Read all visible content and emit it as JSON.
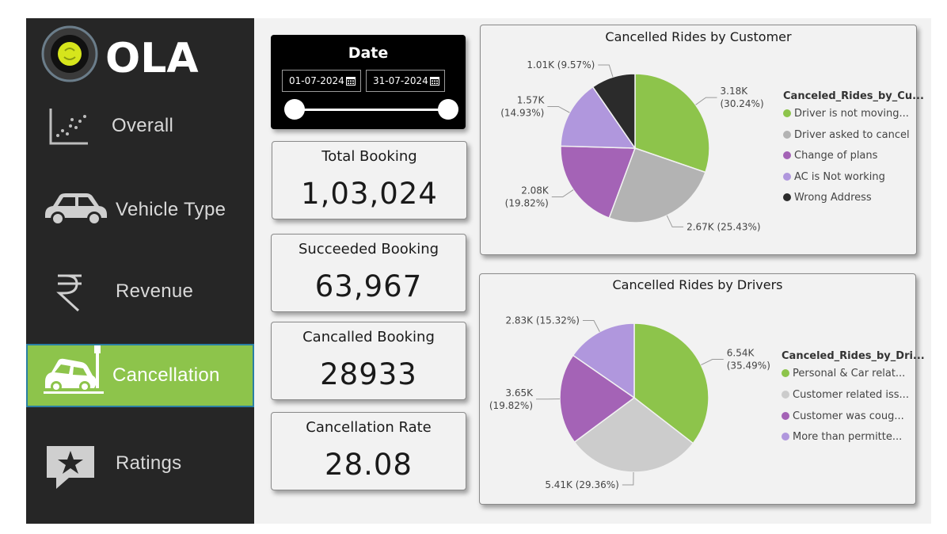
{
  "brand": {
    "name": "OLA"
  },
  "sidebar": {
    "items": [
      {
        "label": "Overall",
        "icon": "scatter-chart-icon"
      },
      {
        "label": "Vehicle Type",
        "icon": "car-icon"
      },
      {
        "label": "Revenue",
        "icon": "rupee-icon"
      },
      {
        "label": "Cancellation",
        "icon": "crashed-car-icon",
        "active": true
      },
      {
        "label": "Ratings",
        "icon": "star-comment-icon"
      }
    ]
  },
  "date_filter": {
    "title": "Date",
    "start": "01-07-2024",
    "end": "31-07-2024"
  },
  "kpis": [
    {
      "title": "Total Booking",
      "value": "1,03,024"
    },
    {
      "title": "Succeeded Booking",
      "value": "63,967"
    },
    {
      "title": "Cancalled Booking",
      "value": "28933"
    },
    {
      "title": "Cancellation Rate",
      "value": "28.08"
    }
  ],
  "colors": {
    "green": "#8dc44b",
    "gray": "#b3b3b3",
    "purple": "#a463b6",
    "lavender": "#b097dd",
    "black": "#2b2b2b",
    "light_gray": "#cccccc"
  },
  "chart_data": [
    {
      "type": "pie",
      "title": "Cancelled Rides by Customer",
      "legend_title": "Canceled_Rides_by_Cu...",
      "slices": [
        {
          "name": "Driver is not moving...",
          "value": 3.18,
          "label": "3.18K (30.24%)",
          "color": "#8dc44b"
        },
        {
          "name": "Driver asked to cancel",
          "value": 2.67,
          "label": "2.67K (25.43%)",
          "color": "#b3b3b3"
        },
        {
          "name": "Change of plans",
          "value": 2.08,
          "label": "2.08K (19.82%)",
          "color": "#a463b6"
        },
        {
          "name": "AC is Not working",
          "value": 1.57,
          "label": "1.57K (14.93%)",
          "color": "#b097dd"
        },
        {
          "name": "Wrong Address",
          "value": 1.01,
          "label": "1.01K (9.57%)",
          "color": "#2b2b2b"
        }
      ]
    },
    {
      "type": "pie",
      "title": "Cancelled Rides by Drivers",
      "legend_title": "Canceled_Rides_by_Dri...",
      "slices": [
        {
          "name": "Personal & Car relat...",
          "value": 6.54,
          "label": "6.54K (35.49%)",
          "color": "#8dc44b"
        },
        {
          "name": "Customer related iss...",
          "value": 5.41,
          "label": "5.41K (29.36%)",
          "color": "#cccccc"
        },
        {
          "name": "Customer was coug...",
          "value": 3.65,
          "label": "3.65K (19.82%)",
          "color": "#a463b6"
        },
        {
          "name": "More than permitte...",
          "value": 2.83,
          "label": "2.83K (15.32%)",
          "color": "#b097dd"
        }
      ]
    }
  ]
}
